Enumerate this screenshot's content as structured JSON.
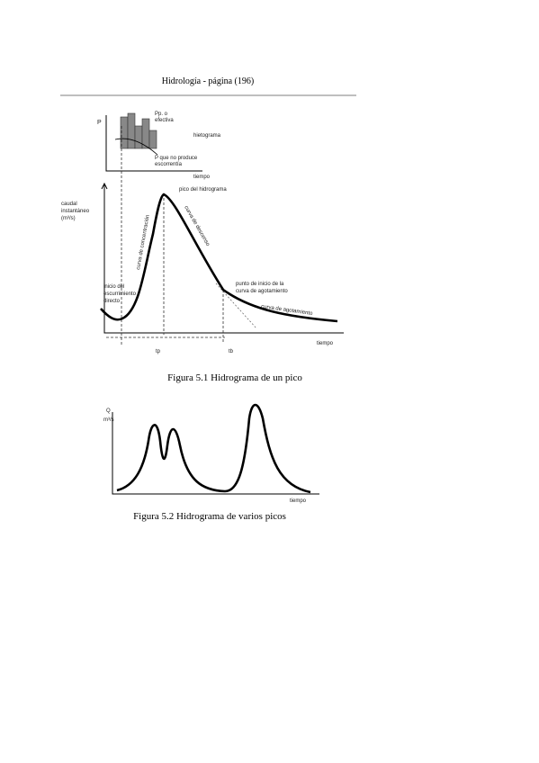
{
  "header": {
    "title": "Hidrología  -  página (196)"
  },
  "figure_1": {
    "hietograma": {
      "y_label": "P",
      "effective": [
        "Pp. o",
        "efectiva"
      ],
      "title": "hietograma",
      "no_runoff": [
        "P que no produce",
        "escorrentía"
      ],
      "x_label": "tiempo"
    },
    "hidrograma": {
      "y_label": [
        "caudal",
        "instantáneo",
        "(m³/s)"
      ],
      "peak": "pico del hidrograma",
      "rising": "curva de concentración",
      "falling": "curva de descenso",
      "recession_start": [
        "punto de inicio de la",
        "curva de agotamiento"
      ],
      "recession": "curva de agotamiento",
      "start": [
        "inicio del",
        "escurrimiento",
        "directo"
      ],
      "x_label": "tiempo",
      "tp": "tp",
      "tb": "tb"
    },
    "caption": "Figura 5.1 Hidrograma de un pico"
  },
  "figure_2": {
    "y_label": [
      "Q",
      "m³/s"
    ],
    "x_label": "tiempo",
    "caption": "Figura 5.2 Hidrograma de varios picos"
  }
}
